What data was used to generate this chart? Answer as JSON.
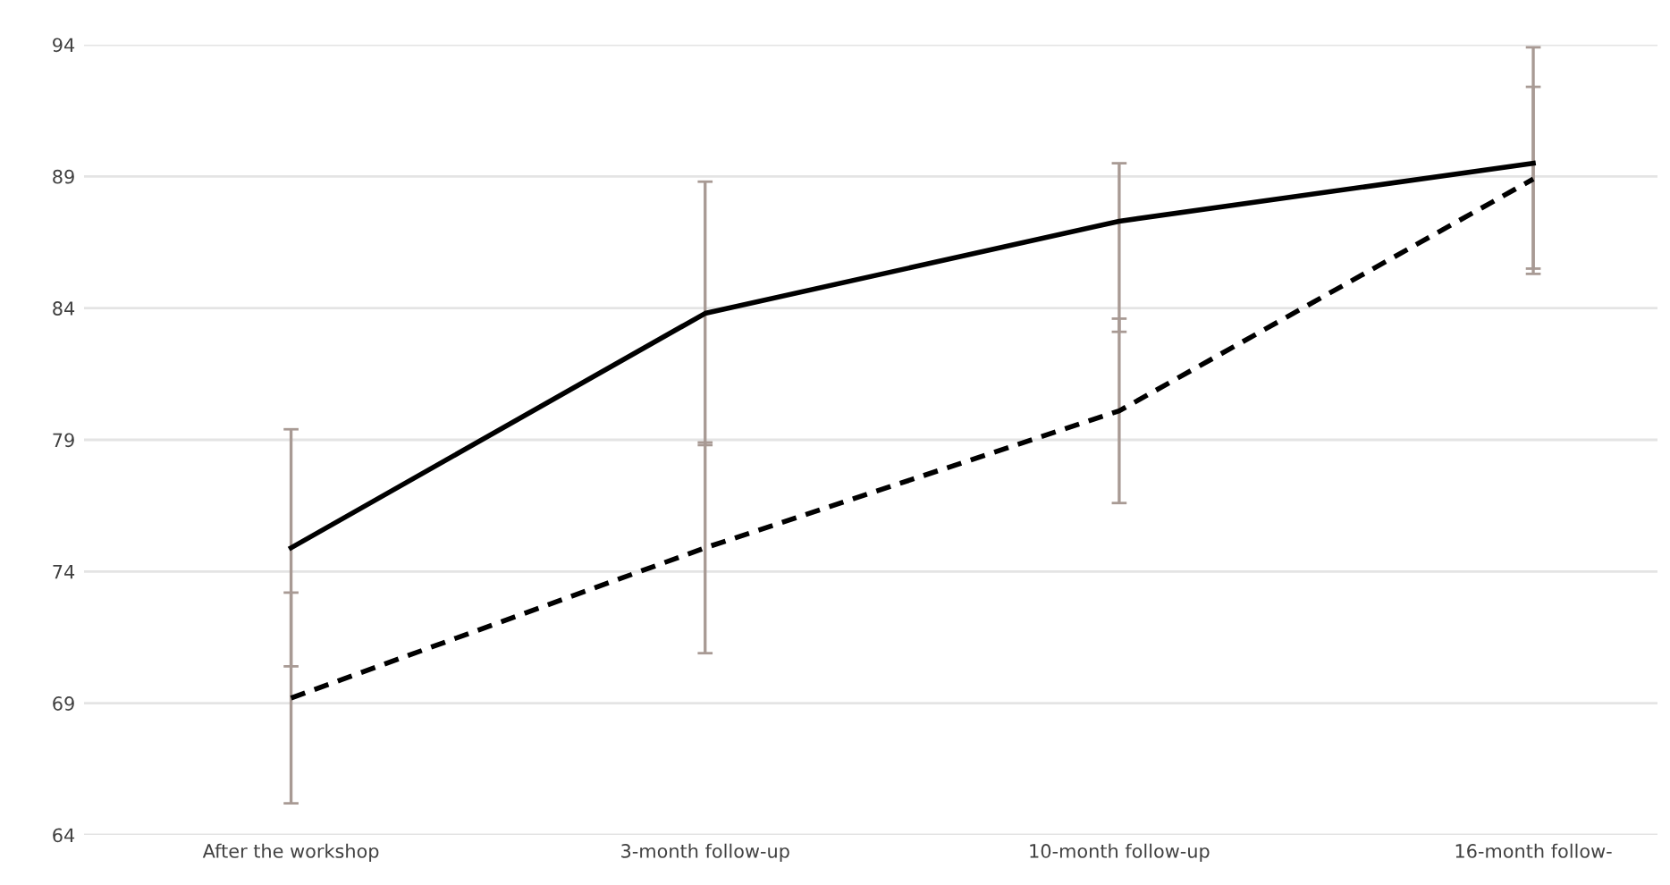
{
  "chart_data": {
    "type": "line",
    "categories": [
      "After the workshop",
      "3-month follow-up",
      "10-month follow-up",
      "16-month follow-"
    ],
    "series": [
      {
        "color": "#000000",
        "line_style": "solid",
        "values": [
          74.9,
          83.8,
          87.3,
          89.5
        ],
        "errors": [
          [
            70.4,
            79.4
          ],
          [
            78.8,
            88.8
          ],
          [
            83.1,
            89.5
          ],
          [
            85.3,
            93.9
          ]
        ]
      },
      {
        "color": "#000000",
        "line_style": "dashed",
        "values": [
          69.2,
          74.9,
          80.1,
          88.9
        ],
        "errors": [
          [
            65.2,
            73.2
          ],
          [
            70.9,
            78.9
          ],
          [
            76.6,
            83.6
          ],
          [
            85.5,
            92.4
          ]
        ]
      }
    ],
    "ylim": [
      64,
      94
    ],
    "yticks": [
      64,
      69,
      74,
      79,
      84,
      89,
      94
    ],
    "grid": "y",
    "legend": false,
    "marker": "none"
  }
}
